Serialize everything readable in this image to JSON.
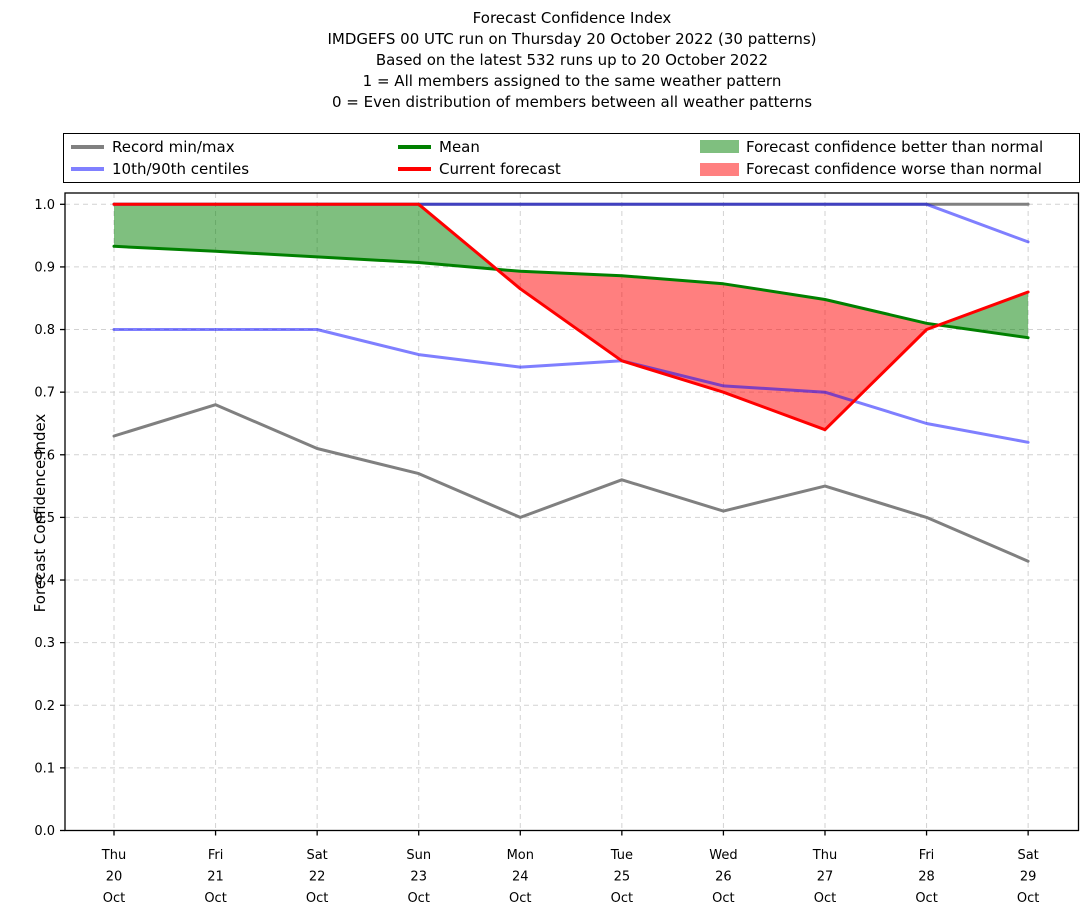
{
  "title": {
    "lines": [
      "Forecast Confidence Index",
      "IMDGEFS 00 UTC run on Thursday 20 October 2022 (30 patterns)",
      "Based on the latest 532 runs up to 20 October 2022",
      "1 = All members assigned to the same weather pattern",
      "0 = Even distribution of members between all weather patterns"
    ]
  },
  "legend": {
    "entries": [
      {
        "label": "Record min/max",
        "color": "#808080",
        "type": "line"
      },
      {
        "label": "10th/90th centiles",
        "color": "#8080ff",
        "type": "line"
      },
      {
        "label": "Mean",
        "color": "#008000",
        "type": "line"
      },
      {
        "label": "Current forecast",
        "color": "#ff0000",
        "type": "line"
      },
      {
        "label": "Forecast confidence better than normal",
        "color": "#7fbf7f",
        "type": "patch"
      },
      {
        "label": "Forecast confidence worse than normal",
        "color": "#ff8080",
        "type": "patch"
      }
    ]
  },
  "chart_data": {
    "type": "line",
    "title": "Forecast Confidence Index",
    "ylabel": "Forecast Confidence Index",
    "ylim": [
      0.0,
      1.0
    ],
    "grid": true,
    "yticks": [
      "0.0",
      "0.1",
      "0.2",
      "0.3",
      "0.4",
      "0.5",
      "0.6",
      "0.7",
      "0.8",
      "0.9",
      "1.0"
    ],
    "categories": [
      {
        "dow": "Thu",
        "day": "20",
        "mon": "Oct"
      },
      {
        "dow": "Fri",
        "day": "21",
        "mon": "Oct"
      },
      {
        "dow": "Sat",
        "day": "22",
        "mon": "Oct"
      },
      {
        "dow": "Sun",
        "day": "23",
        "mon": "Oct"
      },
      {
        "dow": "Mon",
        "day": "24",
        "mon": "Oct"
      },
      {
        "dow": "Tue",
        "day": "25",
        "mon": "Oct"
      },
      {
        "dow": "Wed",
        "day": "26",
        "mon": "Oct"
      },
      {
        "dow": "Thu",
        "day": "27",
        "mon": "Oct"
      },
      {
        "dow": "Fri",
        "day": "28",
        "mon": "Oct"
      },
      {
        "dow": "Sat",
        "day": "29",
        "mon": "Oct"
      }
    ],
    "series": [
      {
        "name": "Record max",
        "color": "#808080",
        "opacity": 1,
        "width": 3,
        "values": [
          1.0,
          1.0,
          1.0,
          1.0,
          1.0,
          1.0,
          1.0,
          1.0,
          1.0,
          1.0
        ]
      },
      {
        "name": "Record min",
        "color": "#808080",
        "opacity": 1,
        "width": 3,
        "values": [
          0.63,
          0.68,
          0.61,
          0.57,
          0.5,
          0.56,
          0.51,
          0.55,
          0.5,
          0.43
        ]
      },
      {
        "name": "90th centile",
        "color": "#0000ff",
        "opacity": 0.5,
        "width": 3,
        "values": [
          1.0,
          1.0,
          1.0,
          1.0,
          1.0,
          1.0,
          1.0,
          1.0,
          1.0,
          0.94
        ]
      },
      {
        "name": "10th centile",
        "color": "#0000ff",
        "opacity": 0.5,
        "width": 3,
        "values": [
          0.8,
          0.8,
          0.8,
          0.76,
          0.74,
          0.75,
          0.71,
          0.7,
          0.65,
          0.62
        ]
      },
      {
        "name": "Mean",
        "color": "#008000",
        "opacity": 1,
        "width": 3,
        "values": [
          0.933,
          0.925,
          0.916,
          0.907,
          0.893,
          0.886,
          0.873,
          0.848,
          0.81,
          0.787
        ]
      },
      {
        "name": "Current forecast",
        "color": "#ff0000",
        "opacity": 1,
        "width": 3,
        "values": [
          1.0,
          1.0,
          1.0,
          1.0,
          0.865,
          0.75,
          0.7,
          0.64,
          0.8,
          0.86
        ]
      }
    ],
    "fills": {
      "between": [
        "Current forecast",
        "Mean"
      ],
      "better_color": "#008000",
      "worse_color": "#ff0000",
      "opacity": 0.5
    }
  }
}
